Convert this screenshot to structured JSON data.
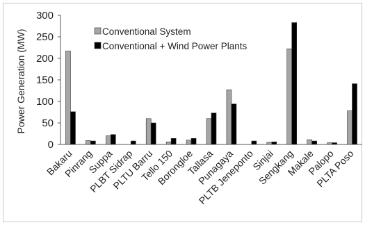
{
  "chart_data": {
    "type": "bar",
    "ylabel": "Power Generation (MW)",
    "xlabel": "",
    "title": "",
    "ylim": [
      0,
      300
    ],
    "yticks": [
      0,
      50,
      100,
      150,
      200,
      250,
      300
    ],
    "grid": false,
    "legend_position": "top-left",
    "categories": [
      "Bakaru",
      "Pinrang",
      "Suppa",
      "PLBT Sidrap",
      "PLTU Barru",
      "Tello 150",
      "Borongloe",
      "Tallasa",
      "Punagaya",
      "PLTB Jeneponto",
      "Sinjai",
      "Sengkang",
      "Makale",
      "Palopo",
      "PLTA Poso"
    ],
    "series": [
      {
        "name": "Conventional System",
        "color": "#a6a6a6",
        "values": [
          217,
          9,
          20,
          0,
          60,
          6,
          10,
          60,
          127,
          0,
          5,
          222,
          11,
          4,
          78
        ]
      },
      {
        "name": "Conventional + Wind Power Plants",
        "color": "#000000",
        "values": [
          76,
          8,
          23,
          8,
          50,
          14,
          14,
          73,
          94,
          8,
          6,
          283,
          8,
          4,
          141
        ]
      }
    ]
  }
}
